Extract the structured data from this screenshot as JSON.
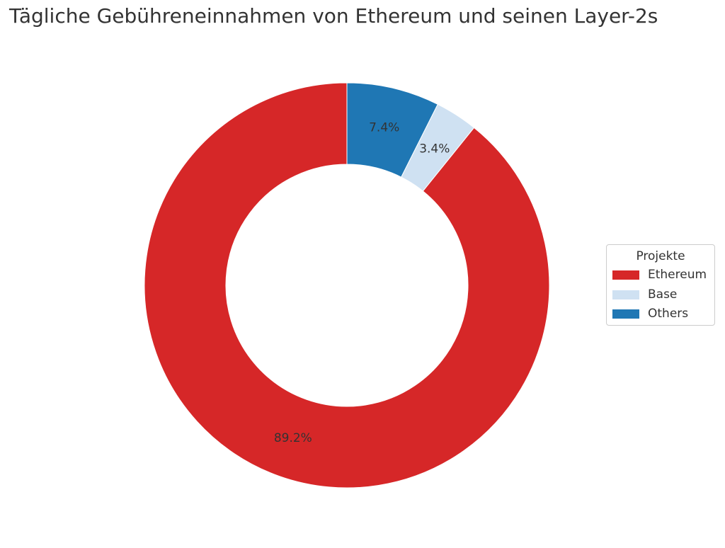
{
  "chart_data": {
    "type": "pie",
    "donut": true,
    "title": "Tägliche Gebühreneinnahmen von Ethereum und seinen Layer-2s",
    "start": "top",
    "direction": "counterclockwise",
    "slices": [
      {
        "label": "Ethereum",
        "value": 89.2,
        "value_label": "89.2%",
        "color": "#d62728"
      },
      {
        "label": "Base",
        "value": 3.4,
        "value_label": "3.4%",
        "color": "#cfe1f2"
      },
      {
        "label": "Others",
        "value": 7.4,
        "value_label": "7.4%",
        "color": "#1f77b4"
      }
    ],
    "legend": {
      "title": "Projekte",
      "placement": "right",
      "entries": [
        "Ethereum",
        "Base",
        "Others"
      ]
    }
  }
}
